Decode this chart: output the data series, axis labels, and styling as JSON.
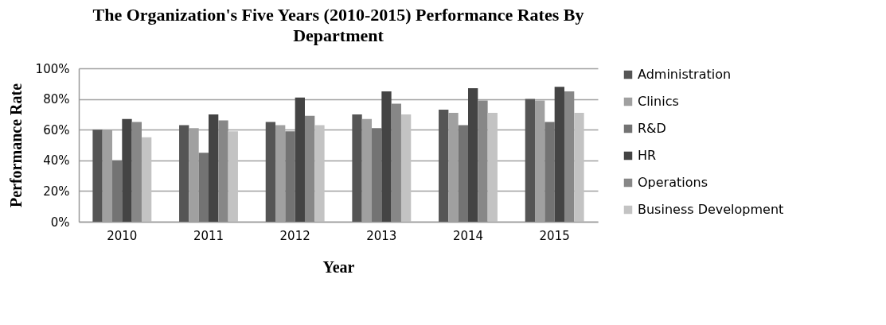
{
  "chart_data": {
    "type": "bar",
    "title": "The Organization's Five Years (2010-2015) Performance Rates By Department",
    "xlabel": "Year",
    "ylabel": "Performance Rate",
    "categories": [
      "2010",
      "2011",
      "2012",
      "2013",
      "2014",
      "2015"
    ],
    "series": [
      {
        "name": "Administration",
        "color": "#555555",
        "values": [
          60,
          63,
          65,
          70,
          73,
          80
        ]
      },
      {
        "name": "Clinics",
        "color": "#a0a0a0",
        "values": [
          60,
          61,
          63,
          67,
          71,
          79
        ]
      },
      {
        "name": "R&D",
        "color": "#737373",
        "values": [
          40,
          45,
          59,
          61,
          63,
          65
        ]
      },
      {
        "name": "HR",
        "color": "#444444",
        "values": [
          67,
          70,
          81,
          85,
          87,
          88
        ]
      },
      {
        "name": "Operations",
        "color": "#878787",
        "values": [
          65,
          66,
          69,
          77,
          79,
          85
        ]
      },
      {
        "name": "Business Development",
        "color": "#c3c3c3",
        "values": [
          55,
          59,
          63,
          70,
          71,
          71
        ]
      }
    ],
    "ylim": [
      0,
      100
    ],
    "yticks": [
      {
        "value": 0,
        "label": "0%"
      },
      {
        "value": 20,
        "label": "20%"
      },
      {
        "value": 40,
        "label": "40%"
      },
      {
        "value": 60,
        "label": "60%"
      },
      {
        "value": 80,
        "label": "80%"
      },
      {
        "value": 100,
        "label": "100%"
      }
    ],
    "grid": "y",
    "legend": "right"
  }
}
